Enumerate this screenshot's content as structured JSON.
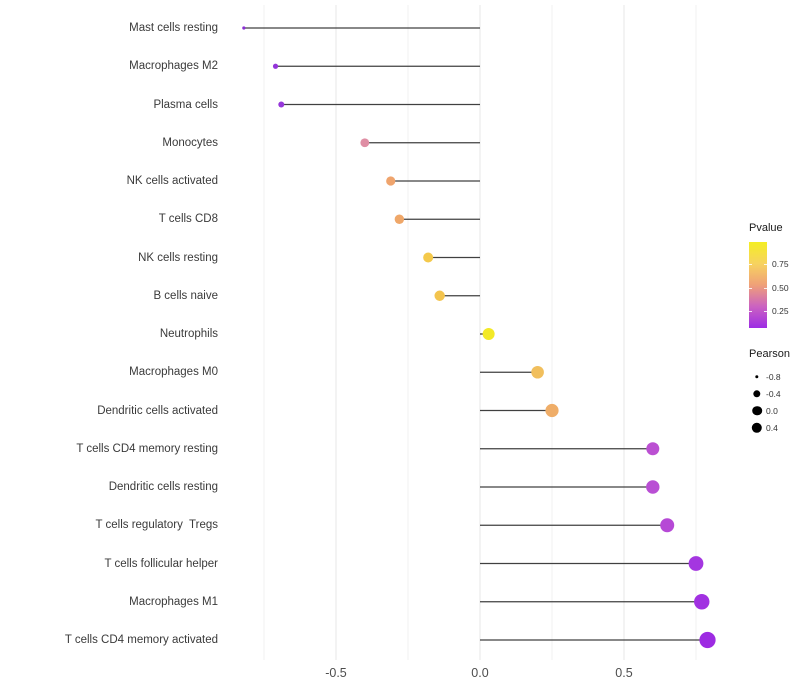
{
  "chart_data": {
    "type": "lollipop",
    "title": "",
    "xlabel": "",
    "ylabel": "",
    "xlim": [
      -0.9,
      0.87
    ],
    "x_ticks": [
      {
        "value": -0.5,
        "label": "-0.5"
      },
      {
        "value": 0.0,
        "label": "0.0"
      },
      {
        "value": 0.5,
        "label": "0.5"
      }
    ],
    "gridlines": {
      "major": [
        -0.5,
        0.0,
        0.5
      ],
      "minor": [
        -0.75,
        -0.25,
        0.25,
        0.75
      ]
    },
    "rows": [
      {
        "label": "Mast cells resting",
        "pearson": -0.82,
        "color": "#8b2fd4",
        "r": 1.6
      },
      {
        "label": "Macrophages M2",
        "pearson": -0.71,
        "color": "#9334d9",
        "r": 2.6
      },
      {
        "label": "Plasma cells",
        "pearson": -0.69,
        "color": "#9637da",
        "r": 3.0
      },
      {
        "label": "Monocytes",
        "pearson": -0.4,
        "color": "#df8ea4",
        "r": 4.4
      },
      {
        "label": "NK cells activated",
        "pearson": -0.31,
        "color": "#efa46d",
        "r": 4.6
      },
      {
        "label": "T cells CD8",
        "pearson": -0.28,
        "color": "#efa769",
        "r": 4.7
      },
      {
        "label": "NK cells resting",
        "pearson": -0.18,
        "color": "#f4c94b",
        "r": 5.0
      },
      {
        "label": "B cells naive",
        "pearson": -0.14,
        "color": "#f3c44e",
        "r": 5.2
      },
      {
        "label": "Neutrophils",
        "pearson": 0.03,
        "color": "#f3e927",
        "r": 6.0
      },
      {
        "label": "Macrophages M0",
        "pearson": 0.2,
        "color": "#f1bf5d",
        "r": 6.3
      },
      {
        "label": "Dendritic cells activated",
        "pearson": 0.25,
        "color": "#efad68",
        "r": 6.6
      },
      {
        "label": "T cells CD4 memory resting",
        "pearson": 0.6,
        "color": "#bb50d2",
        "r": 6.5
      },
      {
        "label": "Dendritic cells resting",
        "pearson": 0.6,
        "color": "#b94fd4",
        "r": 6.7
      },
      {
        "label": "T cells regulatory  Tregs",
        "pearson": 0.65,
        "color": "#b649d6",
        "r": 7.0
      },
      {
        "label": "T cells follicular helper",
        "pearson": 0.75,
        "color": "#a436e0",
        "r": 7.4
      },
      {
        "label": "Macrophages M1",
        "pearson": 0.77,
        "color": "#a131e1",
        "r": 7.7
      },
      {
        "label": "T cells CD4 memory activated",
        "pearson": 0.79,
        "color": "#9d2be2",
        "r": 8.1
      }
    ],
    "legend_pvalue": {
      "title": "Pvalue",
      "ticks": [
        {
          "label": "0.75",
          "offset": 22
        },
        {
          "label": "0.50",
          "offset": 45.5
        },
        {
          "label": "0.25",
          "offset": 69
        }
      ],
      "gradient": [
        "#f4ee24",
        "#f7d35f",
        "#efa078",
        "#cb62c1",
        "#9d2ce4"
      ]
    },
    "legend_pearson": {
      "title": "Pearson",
      "color": "#000000",
      "items": [
        {
          "label": "-0.8",
          "r": 1.7
        },
        {
          "label": "-0.4",
          "r": 3.7
        },
        {
          "label": "0.0",
          "r": 4.8
        },
        {
          "label": "0.4",
          "r": 5.2
        }
      ]
    },
    "colors": {
      "background": "#ffffff",
      "stick": "#404040",
      "grid_major": "#e7e7e7",
      "grid_minor": "#f2f2f2",
      "axis_text": "#4d4d4d"
    }
  }
}
